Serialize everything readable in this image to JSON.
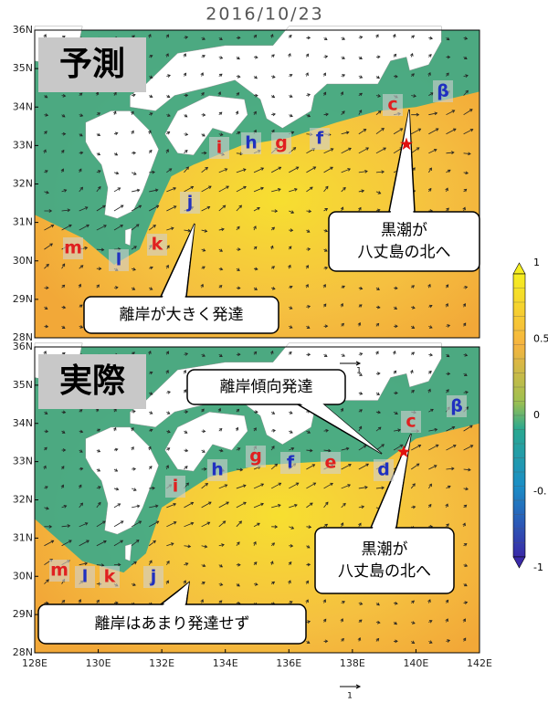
{
  "title": "2016/10/23",
  "lat_ticks": [
    "36N",
    "35N",
    "34N",
    "33N",
    "32N",
    "31N",
    "30N",
    "29N",
    "28N"
  ],
  "lon_ticks": [
    "128E",
    "130E",
    "132E",
    "134E",
    "136E",
    "138E",
    "140E",
    "142E"
  ],
  "colorbar": {
    "labels": [
      "1",
      "0.5",
      "0",
      "-0.",
      "-1"
    ]
  },
  "vector_ref_label": "1",
  "panels": [
    {
      "label": "予測",
      "points": [
        {
          "label": "m",
          "color": "#e02020"
        },
        {
          "label": "l",
          "color": "#2030c0"
        },
        {
          "label": "k",
          "color": "#e02020"
        },
        {
          "label": "j",
          "color": "#2030c0"
        },
        {
          "label": "i",
          "color": "#e02020"
        },
        {
          "label": "h",
          "color": "#2030c0"
        },
        {
          "label": "g",
          "color": "#e02020"
        },
        {
          "label": "f",
          "color": "#2030c0"
        },
        {
          "label": "c",
          "color": "#e02020"
        },
        {
          "label": "β",
          "color": "#2030c0"
        }
      ],
      "callouts": [
        {
          "lines": [
            "離岸が大きく発達"
          ]
        },
        {
          "lines": [
            "黒潮が",
            "八丈島の北へ"
          ]
        }
      ]
    },
    {
      "label": "実際",
      "points": [
        {
          "label": "m",
          "color": "#e02020"
        },
        {
          "label": "l",
          "color": "#2030c0"
        },
        {
          "label": "k",
          "color": "#e02020"
        },
        {
          "label": "j",
          "color": "#2030c0"
        },
        {
          "label": "i",
          "color": "#e02020"
        },
        {
          "label": "h",
          "color": "#2030c0"
        },
        {
          "label": "g",
          "color": "#e02020"
        },
        {
          "label": "f",
          "color": "#2030c0"
        },
        {
          "label": "e",
          "color": "#e02020"
        },
        {
          "label": "d",
          "color": "#2030c0"
        },
        {
          "label": "c",
          "color": "#e02020"
        },
        {
          "label": "β",
          "color": "#2030c0"
        }
      ],
      "callouts": [
        {
          "lines": [
            "離岸傾向発達"
          ]
        },
        {
          "lines": [
            "黒潮が",
            "八丈島の北へ"
          ]
        },
        {
          "lines": [
            "離岸はあまり発達せず"
          ]
        }
      ]
    }
  ]
}
